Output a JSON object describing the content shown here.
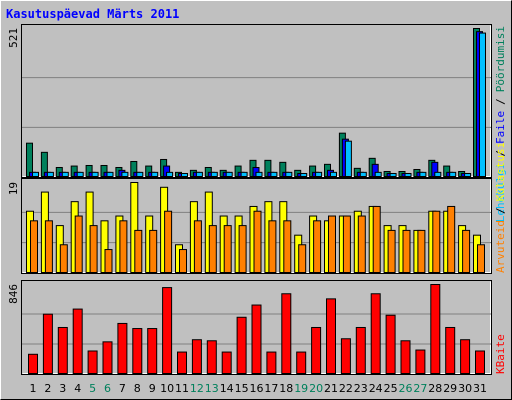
{
  "chart_data": [
    {
      "type": "bar",
      "title": "Kasutuspäevad Märts 2011",
      "legend_separator": "/",
      "ylim": [
        0,
        521
      ],
      "yticks": [
        521
      ],
      "grid_divisions": 3,
      "series": [
        {
          "name": "Pöördumisi",
          "color": "#00805c",
          "values": [
            120,
            88,
            35,
            40,
            42,
            42,
            35,
            56,
            40,
            63,
            18,
            25,
            35,
            25,
            40,
            60,
            60,
            53,
            25,
            40,
            46,
            155,
            32,
            67,
            21,
            21,
            28,
            60,
            40,
            21,
            521
          ]
        },
        {
          "name": "Faile",
          "color": "#0000ff",
          "values": [
            18,
            18,
            18,
            18,
            18,
            18,
            25,
            18,
            18,
            40,
            14,
            18,
            18,
            18,
            18,
            35,
            18,
            18,
            14,
            18,
            25,
            134,
            18,
            46,
            14,
            14,
            18,
            53,
            18,
            14,
            510
          ]
        },
        {
          "name": "Lehekülgi",
          "color": "#00c0ff",
          "values": [
            18,
            18,
            18,
            18,
            18,
            18,
            18,
            18,
            18,
            18,
            14,
            18,
            18,
            18,
            18,
            18,
            18,
            18,
            14,
            18,
            18,
            127,
            18,
            18,
            14,
            14,
            18,
            18,
            18,
            14,
            505
          ]
        }
      ]
    },
    {
      "type": "bar",
      "ylim": [
        0,
        19
      ],
      "yticks": [
        19
      ],
      "grid_divisions": 3,
      "series": [
        {
          "name": "Külastusi",
          "color": "#ffff00",
          "values": [
            13,
            17,
            10,
            15,
            17,
            11,
            12,
            19,
            12,
            18,
            6,
            15,
            17,
            12,
            12,
            14,
            15,
            15,
            8,
            12,
            11,
            12,
            13,
            14,
            10,
            10,
            9,
            13,
            13,
            10,
            8
          ]
        },
        {
          "name": "Arvuteid",
          "color": "#ff8000",
          "values": [
            11,
            11,
            6,
            12,
            10,
            5,
            11,
            9,
            9,
            13,
            5,
            11,
            10,
            10,
            10,
            13,
            11,
            11,
            6,
            11,
            12,
            12,
            12,
            14,
            9,
            9,
            9,
            13,
            14,
            9,
            6
          ]
        }
      ]
    },
    {
      "type": "bar",
      "ylim": [
        0,
        846
      ],
      "yticks": [
        846
      ],
      "grid_divisions": 3,
      "categories": [
        "1",
        "2",
        "3",
        "4",
        "5",
        "6",
        "7",
        "8",
        "9",
        "10",
        "11",
        "12",
        "13",
        "14",
        "15",
        "16",
        "17",
        "18",
        "19",
        "20",
        "21",
        "22",
        "23",
        "24",
        "25",
        "26",
        "27",
        "28",
        "29",
        "30",
        "31"
      ],
      "category_colors": [
        "#000000",
        "#000000",
        "#000000",
        "#000000",
        "#00805c",
        "#00805c",
        "#000000",
        "#000000",
        "#000000",
        "#000000",
        "#000000",
        "#00805c",
        "#00805c",
        "#000000",
        "#000000",
        "#000000",
        "#000000",
        "#000000",
        "#00805c",
        "#00805c",
        "#000000",
        "#000000",
        "#000000",
        "#000000",
        "#000000",
        "#00805c",
        "#00805c",
        "#000000",
        "#000000",
        "#000000",
        "#000000"
      ],
      "series": [
        {
          "name": "KBaite",
          "color": "#ff0000",
          "values": [
            190,
            567,
            442,
            615,
            221,
            307,
            480,
            432,
            432,
            817,
            211,
            327,
            317,
            211,
            538,
            653,
            211,
            759,
            211,
            442,
            711,
            336,
            442,
            759,
            557,
            317,
            230,
            846,
            442,
            327,
            221
          ]
        }
      ]
    }
  ]
}
